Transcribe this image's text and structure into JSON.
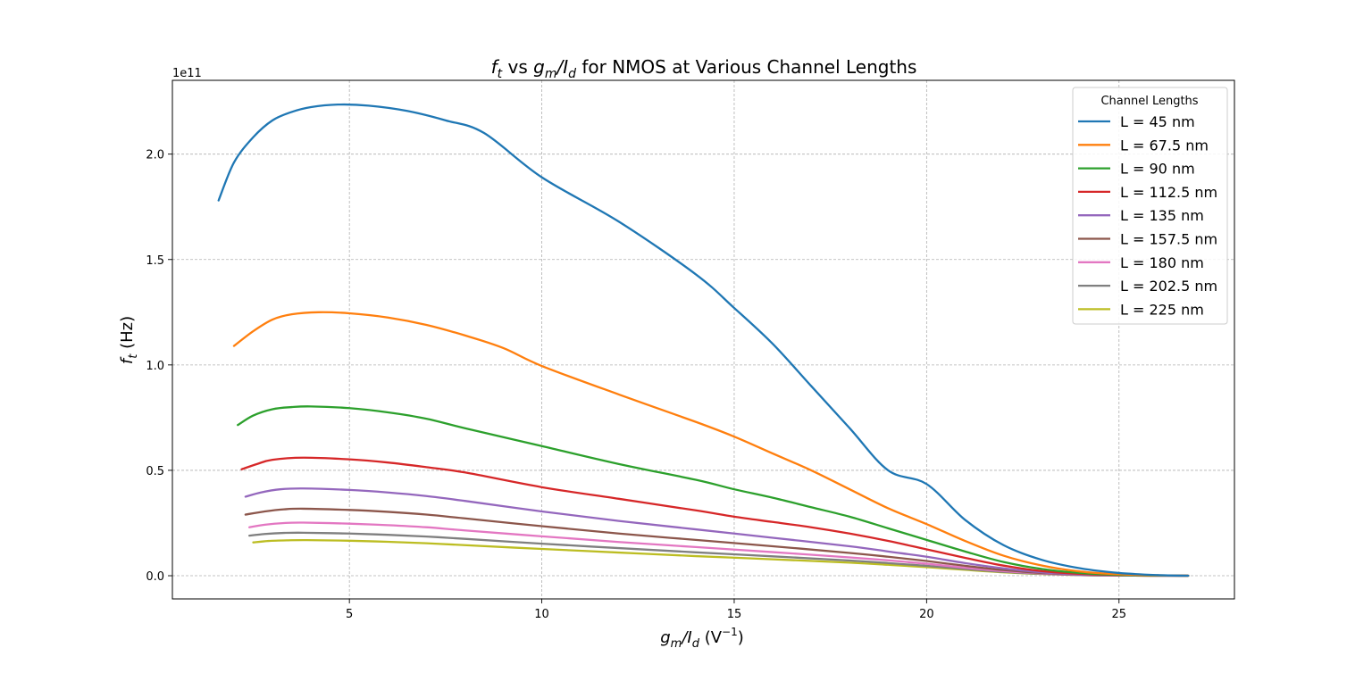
{
  "chart_data": {
    "type": "line",
    "title": "f_t vs g_m/I_d for NMOS at Various Channel Lengths",
    "title_parts": {
      "f": "f",
      "t_sub": "t",
      "vs": " vs ",
      "g": "g",
      "m_sub": "m",
      "slash_i": "/I",
      "d_sub": "d",
      "rest": " for NMOS at Various Channel Lengths"
    },
    "xlabel": "g_m/I_d (V^-1)",
    "xlabel_parts": {
      "g": "g",
      "m_sub": "m",
      "slash_i": "/I",
      "d_sub": "d",
      "unit_open": " (V",
      "unit_sup": "−1",
      "unit_close": ")"
    },
    "ylabel": "f_t (Hz)",
    "ylabel_parts": {
      "f": "f",
      "t_sub": "t",
      "unit": " (Hz)"
    },
    "y_offset_text": "1e11",
    "xlim": [
      0.4,
      28.0
    ],
    "ylim": [
      -11000000000.0,
      235000000000.0
    ],
    "x_ticks": [
      5,
      10,
      15,
      20,
      25
    ],
    "x_tick_labels": [
      "5",
      "10",
      "15",
      "20",
      "25"
    ],
    "y_ticks": [
      0,
      50000000000.0,
      100000000000.0,
      150000000000.0,
      200000000000.0
    ],
    "y_tick_labels": [
      "0.0",
      "0.5",
      "1.0",
      "1.5",
      "2.0"
    ],
    "grid": true,
    "legend": {
      "title": "Channel Lengths",
      "position": "top-right"
    },
    "series": [
      {
        "name": "L = 45 nm",
        "color": "#1f77b4",
        "points": [
          [
            1.6,
            178000000000.0
          ],
          [
            2.0,
            196000000000.0
          ],
          [
            2.5,
            208000000000.0
          ],
          [
            3.0,
            216000000000.0
          ],
          [
            3.5,
            220000000000.0
          ],
          [
            4.0,
            222300000000.0
          ],
          [
            4.7,
            223500000000.0
          ],
          [
            5.5,
            223000000000.0
          ],
          [
            6.5,
            220500000000.0
          ],
          [
            7.5,
            216000000000.0
          ],
          [
            8.5,
            210000000000.0
          ],
          [
            10,
            189000000000.0
          ],
          [
            12,
            168000000000.0
          ],
          [
            14,
            143000000000.0
          ],
          [
            15,
            127000000000.0
          ],
          [
            16,
            110000000000.0
          ],
          [
            17,
            90000000000.0
          ],
          [
            18,
            70000000000.0
          ],
          [
            19,
            50000000000.0
          ],
          [
            20,
            43500000000.0
          ],
          [
            21,
            26500000000.0
          ],
          [
            22,
            14500000000.0
          ],
          [
            23,
            7500000000.0
          ],
          [
            24,
            3500000000.0
          ],
          [
            25,
            1300000000.0
          ],
          [
            26,
            300000000.0
          ],
          [
            26.8,
            0.0
          ]
        ]
      },
      {
        "name": "L = 67.5 nm",
        "color": "#ff7f0e",
        "points": [
          [
            2.0,
            109000000000.0
          ],
          [
            2.5,
            116000000000.0
          ],
          [
            3.0,
            121500000000.0
          ],
          [
            3.5,
            124000000000.0
          ],
          [
            4.2,
            125000000000.0
          ],
          [
            5.0,
            124500000000.0
          ],
          [
            6.0,
            122500000000.0
          ],
          [
            7.0,
            119000000000.0
          ],
          [
            8.0,
            114000000000.0
          ],
          [
            9.0,
            108000000000.0
          ],
          [
            10,
            99500000000.0
          ],
          [
            12,
            86000000000.0
          ],
          [
            14,
            73000000000.0
          ],
          [
            15,
            66000000000.0
          ],
          [
            16,
            58000000000.0
          ],
          [
            17,
            50000000000.0
          ],
          [
            18,
            41000000000.0
          ],
          [
            19,
            32000000000.0
          ],
          [
            20,
            24500000000.0
          ],
          [
            21,
            16500000000.0
          ],
          [
            22,
            9500000000.0
          ],
          [
            23,
            4800000000.0
          ],
          [
            24,
            2000000000.0
          ],
          [
            25,
            700000000.0
          ],
          [
            26,
            200000000.0
          ],
          [
            26.8,
            0.0
          ]
        ]
      },
      {
        "name": "L = 90 nm",
        "color": "#2ca02c",
        "points": [
          [
            2.1,
            71500000000.0
          ],
          [
            2.5,
            76000000000.0
          ],
          [
            3.0,
            79000000000.0
          ],
          [
            3.5,
            80000000000.0
          ],
          [
            4.0,
            80300000000.0
          ],
          [
            5.0,
            79500000000.0
          ],
          [
            6.0,
            77500000000.0
          ],
          [
            7.0,
            74500000000.0
          ],
          [
            8.0,
            70000000000.0
          ],
          [
            10,
            61500000000.0
          ],
          [
            12,
            53000000000.0
          ],
          [
            14,
            45500000000.0
          ],
          [
            15,
            41000000000.0
          ],
          [
            16,
            37000000000.0
          ],
          [
            17,
            32500000000.0
          ],
          [
            18,
            28000000000.0
          ],
          [
            19,
            22500000000.0
          ],
          [
            20,
            17000000000.0
          ],
          [
            21,
            11500000000.0
          ],
          [
            22,
            6500000000.0
          ],
          [
            23,
            3200000000.0
          ],
          [
            24,
            1300000000.0
          ],
          [
            25,
            400000000.0
          ],
          [
            26,
            100000000.0
          ],
          [
            26.8,
            0.0
          ]
        ]
      },
      {
        "name": "L = 112.5 nm",
        "color": "#d62728",
        "points": [
          [
            2.2,
            50500000000.0
          ],
          [
            2.6,
            53000000000.0
          ],
          [
            3.0,
            55000000000.0
          ],
          [
            3.8,
            56000000000.0
          ],
          [
            5.0,
            55200000000.0
          ],
          [
            6.0,
            53700000000.0
          ],
          [
            7.0,
            51500000000.0
          ],
          [
            8.0,
            49000000000.0
          ],
          [
            10,
            42000000000.0
          ],
          [
            12,
            36500000000.0
          ],
          [
            14,
            31000000000.0
          ],
          [
            15,
            28000000000.0
          ],
          [
            16,
            25500000000.0
          ],
          [
            17,
            23000000000.0
          ],
          [
            18,
            20000000000.0
          ],
          [
            19,
            16500000000.0
          ],
          [
            20,
            12500000000.0
          ],
          [
            21,
            8500000000.0
          ],
          [
            22,
            4800000000.0
          ],
          [
            23,
            2200000000.0
          ],
          [
            24,
            900000000.0
          ],
          [
            25,
            300000000.0
          ],
          [
            26.8,
            0.0
          ]
        ]
      },
      {
        "name": "L = 135 nm",
        "color": "#9467bd",
        "points": [
          [
            2.3,
            37500000000.0
          ],
          [
            2.7,
            39500000000.0
          ],
          [
            3.2,
            41000000000.0
          ],
          [
            3.8,
            41400000000.0
          ],
          [
            5.0,
            40700000000.0
          ],
          [
            6.0,
            39500000000.0
          ],
          [
            7.0,
            37800000000.0
          ],
          [
            8.0,
            35500000000.0
          ],
          [
            10,
            30500000000.0
          ],
          [
            12,
            26000000000.0
          ],
          [
            14,
            22000000000.0
          ],
          [
            16,
            18000000000.0
          ],
          [
            18,
            14000000000.0
          ],
          [
            19,
            11500000000.0
          ],
          [
            20,
            9000000000.0
          ],
          [
            21,
            6000000000.0
          ],
          [
            22,
            3500000000.0
          ],
          [
            23,
            1600000000.0
          ],
          [
            24,
            600000000.0
          ],
          [
            25,
            200000000.0
          ],
          [
            26.8,
            0.0
          ]
        ]
      },
      {
        "name": "L = 157.5 nm",
        "color": "#8c564b",
        "points": [
          [
            2.3,
            29000000000.0
          ],
          [
            2.8,
            30500000000.0
          ],
          [
            3.3,
            31500000000.0
          ],
          [
            3.8,
            31800000000.0
          ],
          [
            5.0,
            31200000000.0
          ],
          [
            6.0,
            30300000000.0
          ],
          [
            7.0,
            29000000000.0
          ],
          [
            8.0,
            27200000000.0
          ],
          [
            10,
            23500000000.0
          ],
          [
            12,
            20000000000.0
          ],
          [
            14,
            17000000000.0
          ],
          [
            16,
            14000000000.0
          ],
          [
            18,
            10800000000.0
          ],
          [
            19,
            9000000000.0
          ],
          [
            20,
            7000000000.0
          ],
          [
            21,
            4700000000.0
          ],
          [
            22,
            2700000000.0
          ],
          [
            23,
            1300000000.0
          ],
          [
            24,
            500000000.0
          ],
          [
            25,
            100000000.0
          ],
          [
            26.8,
            0.0
          ]
        ]
      },
      {
        "name": "L = 180 nm",
        "color": "#e377c2",
        "points": [
          [
            2.4,
            23000000000.0
          ],
          [
            2.8,
            24200000000.0
          ],
          [
            3.3,
            25000000000.0
          ],
          [
            3.8,
            25200000000.0
          ],
          [
            5.0,
            24700000000.0
          ],
          [
            6.0,
            24000000000.0
          ],
          [
            7.0,
            23000000000.0
          ],
          [
            8.0,
            21500000000.0
          ],
          [
            10,
            18700000000.0
          ],
          [
            12,
            16000000000.0
          ],
          [
            14,
            13600000000.0
          ],
          [
            16,
            11200000000.0
          ],
          [
            18,
            8700000000.0
          ],
          [
            19,
            7300000000.0
          ],
          [
            20,
            5700000000.0
          ],
          [
            21,
            3800000000.0
          ],
          [
            22,
            2200000000.0
          ],
          [
            23,
            1100000000.0
          ],
          [
            24,
            400000000.0
          ],
          [
            25,
            100000000.0
          ],
          [
            26.8,
            0.0
          ]
        ]
      },
      {
        "name": "L = 202.5 nm",
        "color": "#7f7f7f",
        "points": [
          [
            2.4,
            19000000000.0
          ],
          [
            2.8,
            19800000000.0
          ],
          [
            3.3,
            20300000000.0
          ],
          [
            3.8,
            20400000000.0
          ],
          [
            5.0,
            20000000000.0
          ],
          [
            6.0,
            19400000000.0
          ],
          [
            7.0,
            18600000000.0
          ],
          [
            8.0,
            17500000000.0
          ],
          [
            10,
            15200000000.0
          ],
          [
            12,
            13100000000.0
          ],
          [
            14,
            11100000000.0
          ],
          [
            16,
            9200000000.0
          ],
          [
            18,
            7200000000.0
          ],
          [
            19,
            6000000000.0
          ],
          [
            20,
            4700000000.0
          ],
          [
            21,
            3200000000.0
          ],
          [
            22,
            1800000000.0
          ],
          [
            23,
            900000000.0
          ],
          [
            24,
            300000000.0
          ],
          [
            25,
            100000000.0
          ],
          [
            26.8,
            0.0
          ]
        ]
      },
      {
        "name": "L = 225 nm",
        "color": "#bcbd22",
        "points": [
          [
            2.5,
            15800000000.0
          ],
          [
            2.9,
            16500000000.0
          ],
          [
            3.4,
            16800000000.0
          ],
          [
            3.9,
            16900000000.0
          ],
          [
            5.0,
            16600000000.0
          ],
          [
            6.0,
            16100000000.0
          ],
          [
            7.0,
            15400000000.0
          ],
          [
            8.0,
            14500000000.0
          ],
          [
            10,
            12700000000.0
          ],
          [
            12,
            11000000000.0
          ],
          [
            14,
            9300000000.0
          ],
          [
            16,
            7800000000.0
          ],
          [
            18,
            6200000000.0
          ],
          [
            19,
            5200000000.0
          ],
          [
            20,
            4100000000.0
          ],
          [
            21,
            2800000000.0
          ],
          [
            22,
            1600000000.0
          ],
          [
            23,
            800000000.0
          ],
          [
            24,
            300000000.0
          ],
          [
            25,
            100000000.0
          ],
          [
            26.8,
            0.0
          ]
        ]
      }
    ]
  }
}
